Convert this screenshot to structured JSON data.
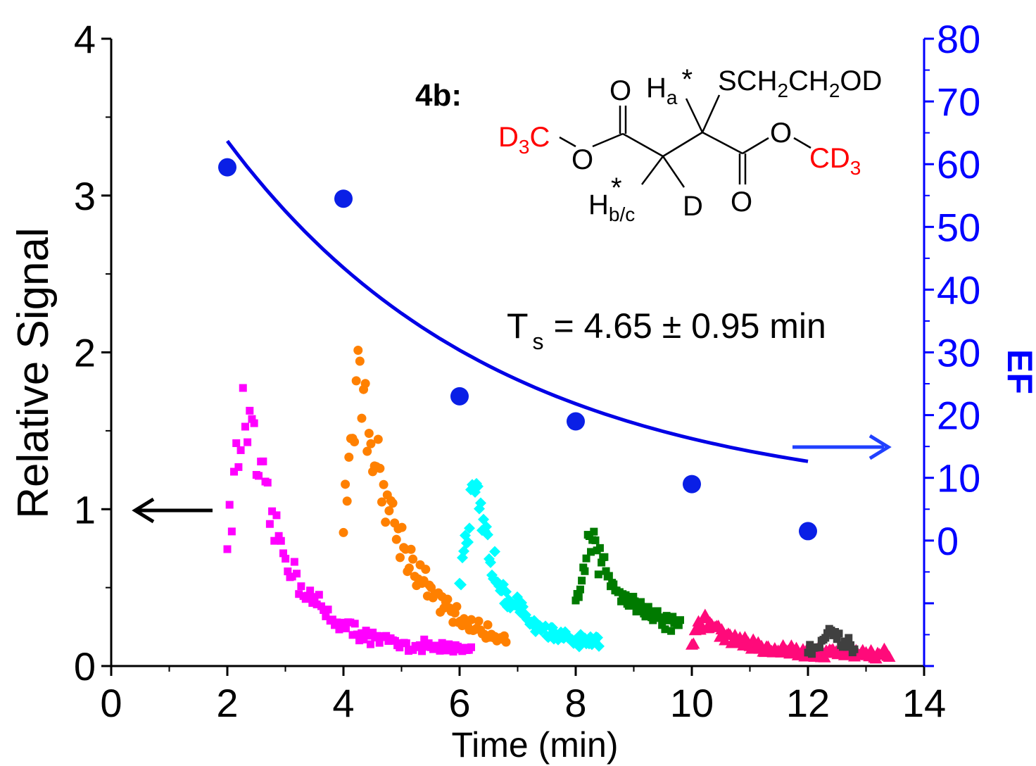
{
  "chart_data": {
    "type": "scatter",
    "xlabel": "Time (min)",
    "ylabel_left": "Relative Signal",
    "ylabel_right": "EF",
    "xlim": [
      0,
      14
    ],
    "ylim_left": [
      0,
      4
    ],
    "ylim_right": [
      -20,
      80
    ],
    "x_ticks": [
      0,
      2,
      4,
      6,
      8,
      10,
      12,
      14
    ],
    "y_ticks_left": [
      0,
      1,
      2,
      3,
      4
    ],
    "y_ticks_right": [
      0,
      10,
      20,
      30,
      40,
      50,
      60,
      70,
      80
    ],
    "grid": false,
    "colors": {
      "axis_left": "#000000",
      "axis_right": "#0000ff",
      "fit_line": "#0000e6",
      "ef_points": "#0a1fe6",
      "magenta": "#ff00ff",
      "orange": "#ff8000",
      "cyan": "#00ffff",
      "green": "#007a00",
      "pink": "#ff0a7a",
      "gray": "#404040",
      "red_label": "#ff0000"
    },
    "ef_points": [
      {
        "x": 2,
        "y": 59.5
      },
      {
        "x": 4,
        "y": 54.5
      },
      {
        "x": 6,
        "y": 23
      },
      {
        "x": 8,
        "y": 19
      },
      {
        "x": 10,
        "y": 9
      },
      {
        "x": 12,
        "y": 1.5
      }
    ],
    "ef_fit": {
      "x_start": 2,
      "x_end": 12,
      "a": 49.2,
      "c": 0,
      "tau": 4.65,
      "offset": 14.0
    },
    "annotations": {
      "compound_label": "4b:",
      "ts_text_main": "T",
      "ts_text_sub": "s",
      "ts_text_rest": " = 4.65 ± 0.95 min"
    },
    "molecule": {
      "o_top_left": "O",
      "ha_main": "H",
      "ha_sub": "a",
      "ha_star": "*",
      "sch_text_1": "SCH",
      "sch_sub_1": "2",
      "sch_text_2": "CH",
      "sch_sub_2": "2",
      "sch_text_3": "OD",
      "d3c_main_1": "D",
      "d3c_sub": "3",
      "d3c_main_2": "C",
      "o_ester_left": "O",
      "o_ester_right": "O",
      "cd3_main": "CD",
      "cd3_sub": "3",
      "hbc_main": "H",
      "hbc_sub": "b/c",
      "hbc_star": "*",
      "d_label": "D",
      "o_bottom_right": "O"
    },
    "series": [
      {
        "marker": "square",
        "color_key": "magenta",
        "x_start": 2.0,
        "x_end": 6.2,
        "peak_x": 2.3,
        "peak_y": 1.65,
        "base": 0.1,
        "decay": 0.75,
        "count": 110
      },
      {
        "marker": "circle",
        "color_key": "orange",
        "x_start": 4.0,
        "x_end": 6.8,
        "peak_x": 4.25,
        "peak_y": 1.9,
        "base": 0.1,
        "decay": 0.8,
        "count": 90
      },
      {
        "marker": "diamond",
        "color_key": "cyan",
        "x_start": 6.0,
        "x_end": 8.4,
        "peak_x": 6.25,
        "peak_y": 1.1,
        "base": 0.12,
        "decay": 0.55,
        "count": 100
      },
      {
        "marker": "square",
        "color_key": "green",
        "x_start": 8.0,
        "x_end": 9.8,
        "peak_x": 8.25,
        "peak_y": 0.8,
        "base": 0.2,
        "decay": 0.7,
        "count": 70
      },
      {
        "marker": "triangle",
        "color_key": "pink",
        "x_start": 10.0,
        "x_end": 13.4,
        "peak_x": 10.2,
        "peak_y": 0.3,
        "base": 0.08,
        "decay": 0.6,
        "count": 120
      },
      {
        "marker": "square",
        "color_key": "gray",
        "x_start": 12.0,
        "x_end": 12.8,
        "peak_x": 12.4,
        "peak_y": 0.2,
        "base": 0.05,
        "decay": 0.5,
        "count": 25
      }
    ]
  }
}
